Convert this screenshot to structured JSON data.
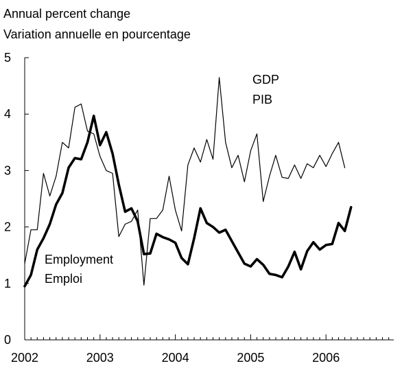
{
  "chart_data": {
    "type": "line",
    "ylabel_line1": "Annual percent change",
    "ylabel_line2": "Variation annuelle en pourcentage",
    "ylim": [
      0,
      5
    ],
    "yticks": [
      "0",
      "1",
      "2",
      "3",
      "4",
      "5"
    ],
    "xlim": [
      2002,
      2006.9
    ],
    "xticks": [
      "2002",
      "2003",
      "2004",
      "2005",
      "2006"
    ],
    "grid": false,
    "series": [
      {
        "name": "GDP",
        "name_alt": "PIB",
        "stroke": "thin",
        "x": [
          2002.0,
          2002.083,
          2002.167,
          2002.25,
          2002.333,
          2002.417,
          2002.5,
          2002.583,
          2002.667,
          2002.75,
          2002.833,
          2002.917,
          2003.0,
          2003.083,
          2003.167,
          2003.25,
          2003.333,
          2003.417,
          2003.5,
          2003.583,
          2003.667,
          2003.75,
          2003.833,
          2003.917,
          2004.0,
          2004.083,
          2004.167,
          2004.25,
          2004.333,
          2004.417,
          2004.5,
          2004.583,
          2004.667,
          2004.75,
          2004.833,
          2004.917,
          2005.0,
          2005.083,
          2005.167,
          2005.25,
          2005.333,
          2005.417,
          2005.5,
          2005.583,
          2005.667,
          2005.75,
          2005.833,
          2005.917,
          2006.0,
          2006.083,
          2006.167,
          2006.25
        ],
        "values": [
          1.35,
          1.95,
          1.95,
          2.95,
          2.55,
          2.9,
          3.5,
          3.4,
          4.12,
          4.18,
          3.7,
          3.65,
          3.25,
          3.0,
          2.95,
          1.83,
          2.05,
          2.1,
          2.3,
          0.97,
          2.15,
          2.15,
          2.3,
          2.9,
          2.3,
          1.93,
          3.1,
          3.4,
          3.15,
          3.55,
          3.2,
          4.65,
          3.5,
          3.05,
          3.27,
          2.8,
          3.35,
          3.65,
          2.45,
          2.9,
          3.27,
          2.88,
          2.86,
          3.1,
          2.86,
          3.12,
          3.05,
          3.27,
          3.07,
          3.3,
          3.5,
          3.05
        ]
      },
      {
        "name": "Employment",
        "name_alt": "Emploi",
        "stroke": "thick",
        "x": [
          2002.0,
          2002.083,
          2002.167,
          2002.25,
          2002.333,
          2002.417,
          2002.5,
          2002.583,
          2002.667,
          2002.75,
          2002.833,
          2002.917,
          2003.0,
          2003.083,
          2003.167,
          2003.25,
          2003.333,
          2003.417,
          2003.5,
          2003.583,
          2003.667,
          2003.75,
          2003.833,
          2003.917,
          2004.0,
          2004.083,
          2004.167,
          2004.25,
          2004.333,
          2004.417,
          2004.5,
          2004.583,
          2004.667,
          2004.75,
          2004.833,
          2004.917,
          2005.0,
          2005.083,
          2005.167,
          2005.25,
          2005.333,
          2005.417,
          2005.5,
          2005.583,
          2005.667,
          2005.75,
          2005.833,
          2005.917,
          2006.0,
          2006.083,
          2006.167,
          2006.25,
          2006.333
        ],
        "values": [
          0.95,
          1.15,
          1.6,
          1.8,
          2.05,
          2.4,
          2.6,
          3.05,
          3.22,
          3.2,
          3.5,
          3.97,
          3.45,
          3.68,
          3.3,
          2.75,
          2.27,
          2.33,
          2.1,
          1.52,
          1.53,
          1.88,
          1.82,
          1.78,
          1.72,
          1.45,
          1.34,
          1.8,
          2.33,
          2.07,
          2.0,
          1.9,
          1.95,
          1.75,
          1.55,
          1.35,
          1.3,
          1.43,
          1.33,
          1.17,
          1.15,
          1.11,
          1.3,
          1.56,
          1.25,
          1.57,
          1.73,
          1.6,
          1.68,
          1.7,
          2.07,
          1.93,
          2.35
        ]
      }
    ]
  }
}
